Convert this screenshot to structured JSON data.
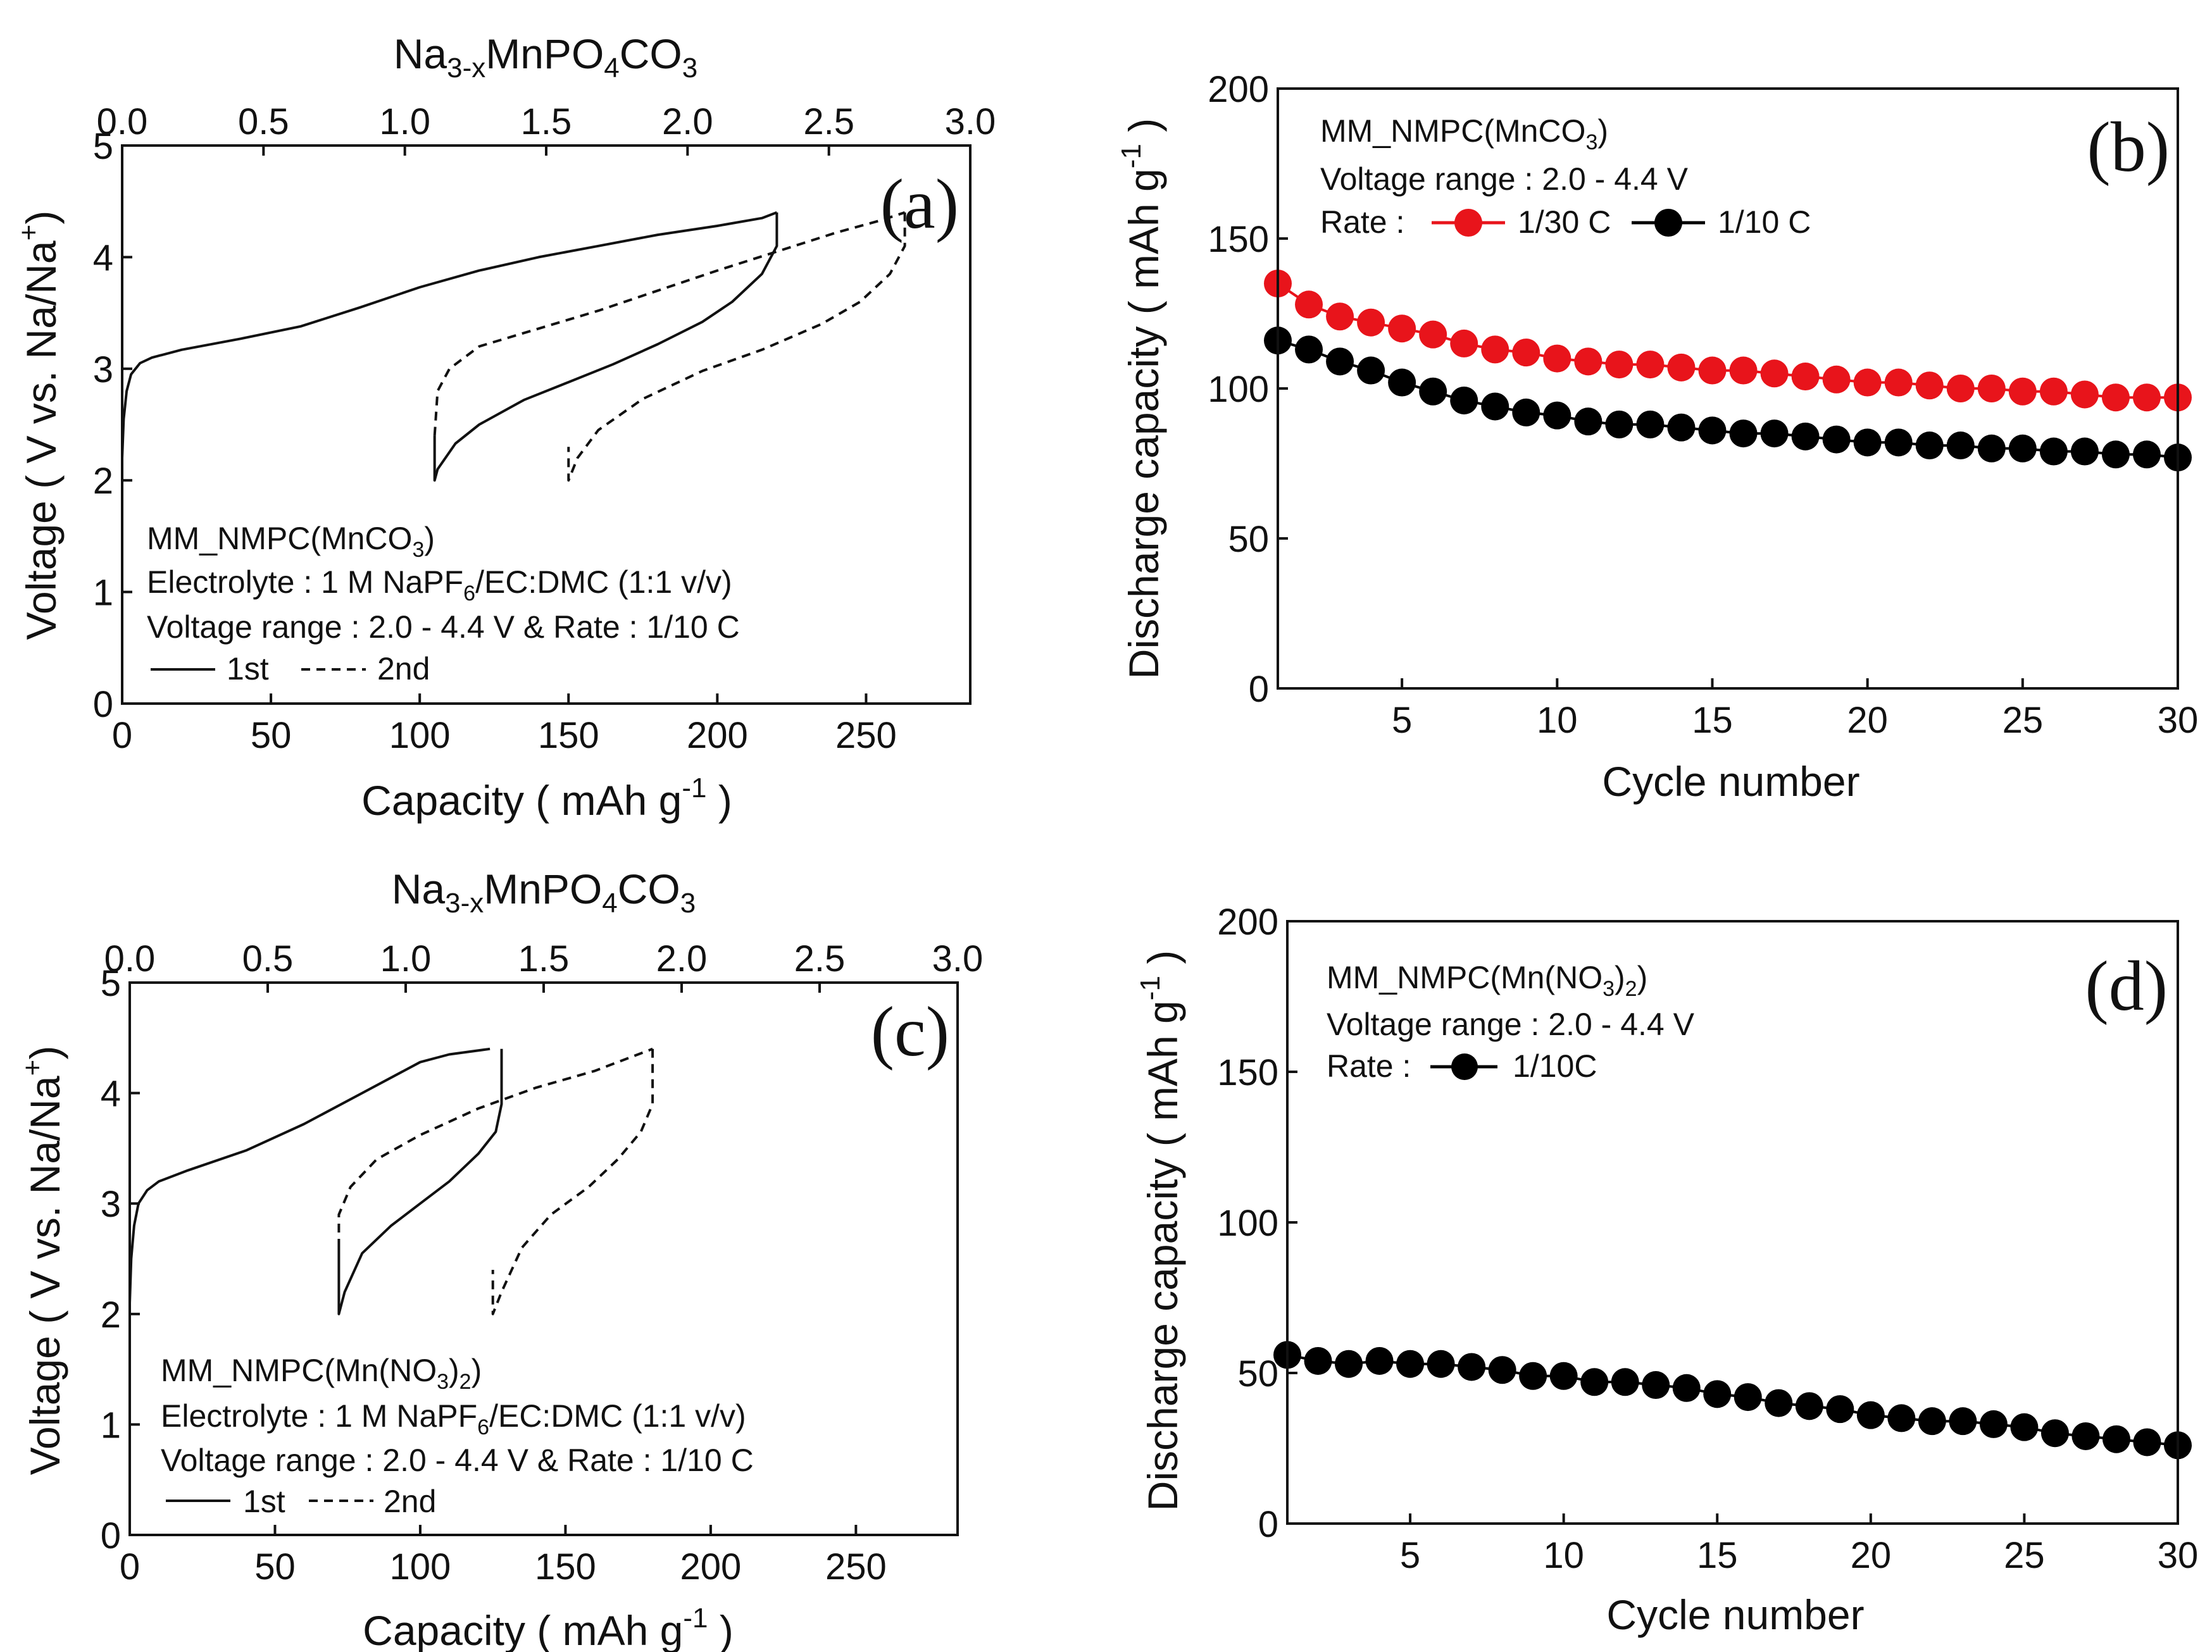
{
  "figure": {
    "panels": [
      "(a)",
      "(b)",
      "(c)",
      "(d)"
    ]
  },
  "chart_data": [
    {
      "id": "a",
      "type": "line",
      "panel_label": "(a)",
      "title": "",
      "xlabel": "Capacity ( mAh g-1 )",
      "ylabel": "Voltage ( V vs. Na/Na+ )",
      "top_xlabel": "Na3-xMnPO4CO3",
      "xlim": [
        0,
        285
      ],
      "ylim": [
        0,
        5
      ],
      "xticks": [
        0,
        50,
        100,
        150,
        200,
        250
      ],
      "yticks": [
        0,
        1,
        2,
        3,
        4,
        5
      ],
      "top_xlim": [
        0,
        3.0
      ],
      "top_xticks": [
        "0.0",
        "0.5",
        "1.0",
        "1.5",
        "2.0",
        "2.5",
        "3.0"
      ],
      "legend_lines": [
        "MM_NMPC(MnCO3)",
        "Electrolyte : 1 M NaPF6/EC:DMC (1:1 v/v)",
        "Voltage range : 2.0 - 4.4 V & Rate : 1/10 C"
      ],
      "series": [
        {
          "name": "1st",
          "style": "solid",
          "segments": [
            [
              [
                0,
                2.2
              ],
              [
                0.5,
                2.55
              ],
              [
                1.5,
                2.8
              ],
              [
                3,
                2.95
              ],
              [
                6,
                3.05
              ],
              [
                10,
                3.1
              ],
              [
                20,
                3.17
              ],
              [
                40,
                3.27
              ],
              [
                60,
                3.38
              ],
              [
                80,
                3.55
              ],
              [
                100,
                3.73
              ],
              [
                120,
                3.88
              ],
              [
                140,
                4.0
              ],
              [
                160,
                4.1
              ],
              [
                180,
                4.2
              ],
              [
                200,
                4.28
              ],
              [
                215,
                4.35
              ],
              [
                220,
                4.4
              ]
            ],
            [
              [
                220,
                4.4
              ],
              [
                220,
                4.1
              ],
              [
                215,
                3.85
              ],
              [
                205,
                3.6
              ],
              [
                195,
                3.42
              ],
              [
                180,
                3.22
              ],
              [
                165,
                3.04
              ],
              [
                150,
                2.88
              ],
              [
                135,
                2.72
              ],
              [
                120,
                2.5
              ],
              [
                112,
                2.33
              ],
              [
                106,
                2.1
              ],
              [
                105,
                2.0
              ],
              [
                105,
                2.4
              ]
            ]
          ]
        },
        {
          "name": "2nd",
          "style": "dashed",
          "segments": [
            [
              [
                105,
                2.4
              ],
              [
                106,
                2.8
              ],
              [
                110,
                3.0
              ],
              [
                120,
                3.2
              ],
              [
                140,
                3.36
              ],
              [
                160,
                3.52
              ],
              [
                180,
                3.7
              ],
              [
                200,
                3.88
              ],
              [
                220,
                4.05
              ],
              [
                240,
                4.22
              ],
              [
                255,
                4.33
              ],
              [
                263,
                4.4
              ]
            ],
            [
              [
                263,
                4.4
              ],
              [
                263,
                4.1
              ],
              [
                258,
                3.85
              ],
              [
                248,
                3.6
              ],
              [
                235,
                3.4
              ],
              [
                215,
                3.17
              ],
              [
                195,
                2.98
              ],
              [
                175,
                2.73
              ],
              [
                160,
                2.45
              ],
              [
                153,
                2.2
              ],
              [
                150,
                2.0
              ],
              [
                150,
                2.3
              ]
            ]
          ]
        }
      ]
    },
    {
      "id": "b",
      "type": "scatter",
      "panel_label": "(b)",
      "title": "",
      "xlabel": "Cycle number",
      "ylabel": "Discharge capacity ( mAh g-1 )",
      "xlim": [
        1,
        30
      ],
      "ylim": [
        0,
        200
      ],
      "xticks": [
        5,
        10,
        15,
        20,
        25,
        30
      ],
      "yticks": [
        0,
        50,
        100,
        150,
        200
      ],
      "legend_lines": [
        "MM_NMPC(MnCO3)",
        "Voltage range : 2.0 - 4.4 V",
        "Rate :"
      ],
      "x": [
        1,
        2,
        3,
        4,
        5,
        6,
        7,
        8,
        9,
        10,
        11,
        12,
        13,
        14,
        15,
        16,
        17,
        18,
        19,
        20,
        21,
        22,
        23,
        24,
        25,
        26,
        27,
        28,
        29,
        30
      ],
      "series": [
        {
          "name": "1/30 C",
          "color": "#e8141b",
          "values": [
            135,
            128,
            124,
            122,
            120,
            118,
            115,
            113,
            112,
            110,
            109,
            108,
            108,
            107,
            106,
            106,
            105,
            104,
            103,
            102,
            102,
            101,
            100,
            100,
            99,
            99,
            98,
            97,
            97,
            97
          ]
        },
        {
          "name": "1/10 C",
          "color": "#000000",
          "values": [
            116,
            113,
            109,
            106,
            102,
            99,
            96,
            94,
            92,
            91,
            89,
            88,
            88,
            87,
            86,
            85,
            85,
            84,
            83,
            82,
            82,
            81,
            81,
            80,
            80,
            79,
            79,
            78,
            78,
            77
          ]
        }
      ]
    },
    {
      "id": "c",
      "type": "line",
      "panel_label": "(c)",
      "title": "",
      "xlabel": "Capacity ( mAh g-1 )",
      "ylabel": "Voltage ( V vs. Na/Na+ )",
      "top_xlabel": "Na3-xMnPO4CO3",
      "xlim": [
        0,
        285
      ],
      "ylim": [
        0,
        5
      ],
      "xticks": [
        0,
        50,
        100,
        150,
        200,
        250
      ],
      "yticks": [
        0,
        1,
        2,
        3,
        4,
        5
      ],
      "top_xlim": [
        0,
        3.0
      ],
      "top_xticks": [
        "0.0",
        "0.5",
        "1.0",
        "1.5",
        "2.0",
        "2.5",
        "3.0"
      ],
      "legend_lines": [
        "MM_NMPC(Mn(NO3)2)",
        "Electrolyte : 1 M NaPF6/EC:DMC (1:1 v/v)",
        "Voltage range : 2.0 - 4.4 V & Rate : 1/10 C"
      ],
      "series": [
        {
          "name": "1st",
          "style": "solid",
          "segments": [
            [
              [
                0,
                2.1
              ],
              [
                0.5,
                2.5
              ],
              [
                1.5,
                2.8
              ],
              [
                3,
                3.0
              ],
              [
                6,
                3.12
              ],
              [
                10,
                3.2
              ],
              [
                20,
                3.3
              ],
              [
                40,
                3.48
              ],
              [
                60,
                3.72
              ],
              [
                80,
                4.0
              ],
              [
                100,
                4.28
              ],
              [
                110,
                4.35
              ],
              [
                124,
                4.4
              ]
            ],
            [
              [
                128,
                4.4
              ],
              [
                128,
                3.9
              ],
              [
                126,
                3.65
              ],
              [
                120,
                3.45
              ],
              [
                110,
                3.2
              ],
              [
                100,
                3.0
              ],
              [
                90,
                2.8
              ],
              [
                80,
                2.55
              ],
              [
                74,
                2.2
              ],
              [
                72,
                2.0
              ],
              [
                72,
                2.6
              ]
            ]
          ]
        },
        {
          "name": "2nd",
          "style": "dashed",
          "segments": [
            [
              [
                72,
                2.6
              ],
              [
                72,
                2.9
              ],
              [
                76,
                3.15
              ],
              [
                85,
                3.4
              ],
              [
                100,
                3.62
              ],
              [
                120,
                3.86
              ],
              [
                140,
                4.05
              ],
              [
                160,
                4.2
              ],
              [
                170,
                4.3
              ],
              [
                180,
                4.4
              ]
            ],
            [
              [
                180,
                4.4
              ],
              [
                180,
                3.9
              ],
              [
                176,
                3.65
              ],
              [
                168,
                3.4
              ],
              [
                158,
                3.15
              ],
              [
                145,
                2.9
              ],
              [
                135,
                2.6
              ],
              [
                128,
                2.2
              ],
              [
                125,
                2.0
              ],
              [
                125,
                2.4
              ]
            ]
          ]
        }
      ]
    },
    {
      "id": "d",
      "type": "scatter",
      "panel_label": "(d)",
      "title": "",
      "xlabel": "Cycle number",
      "ylabel": "Discharge capacity ( mAh g-1 )",
      "xlim": [
        1,
        30
      ],
      "ylim": [
        0,
        200
      ],
      "xticks": [
        5,
        10,
        15,
        20,
        25,
        30
      ],
      "yticks": [
        0,
        50,
        100,
        150,
        200
      ],
      "legend_lines": [
        "MM_NMPC(Mn(NO3)2)",
        "Voltage range : 2.0 - 4.4 V",
        "Rate :"
      ],
      "x": [
        1,
        2,
        3,
        4,
        5,
        6,
        7,
        8,
        9,
        10,
        11,
        12,
        13,
        14,
        15,
        16,
        17,
        18,
        19,
        20,
        21,
        22,
        23,
        24,
        25,
        26,
        27,
        28,
        29,
        30
      ],
      "series": [
        {
          "name": "1/10C",
          "color": "#000000",
          "values": [
            56,
            54,
            53,
            54,
            53,
            53,
            52,
            51,
            49,
            49,
            47,
            47,
            46,
            45,
            43,
            42,
            40,
            39,
            38,
            36,
            35,
            34,
            34,
            33,
            32,
            30,
            29,
            28,
            27,
            26
          ]
        }
      ]
    }
  ]
}
